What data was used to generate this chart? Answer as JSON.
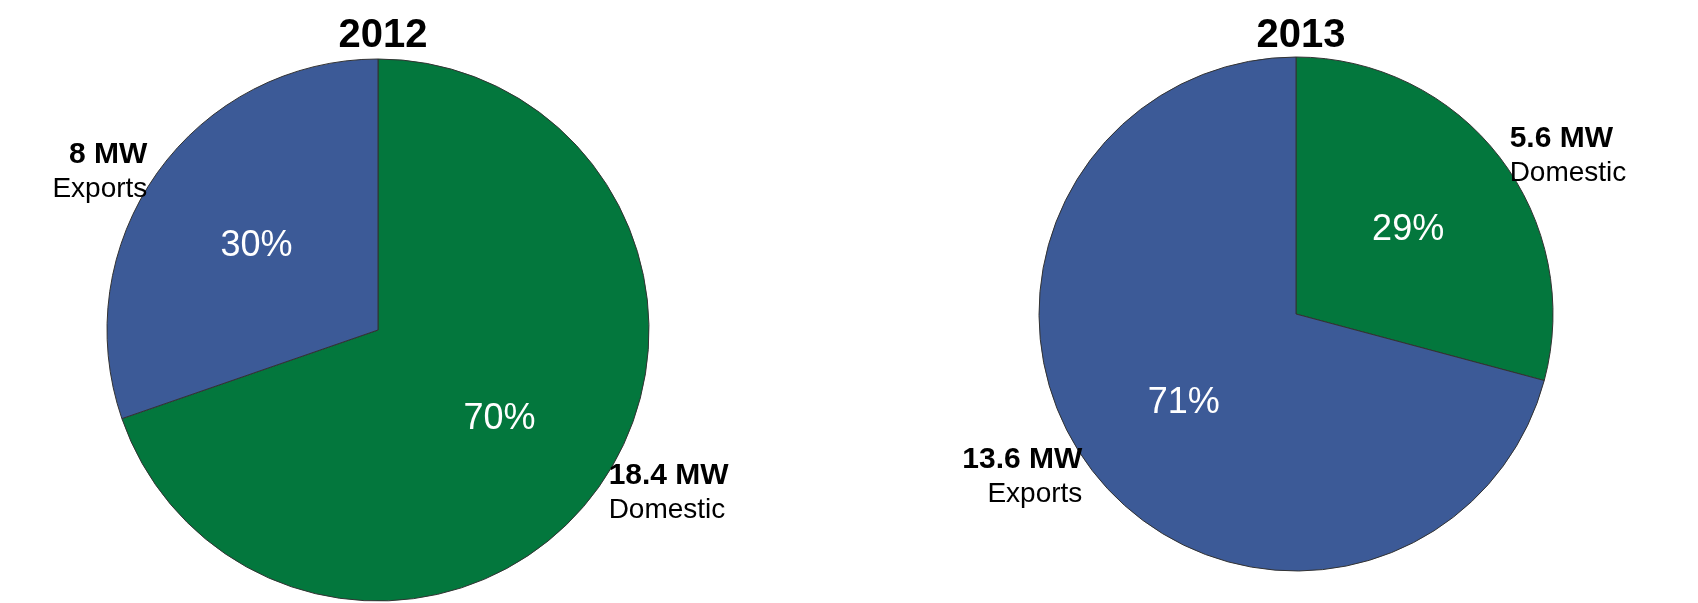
{
  "chart_data": [
    {
      "type": "pie",
      "title": "2012",
      "categories": [
        "Domestic",
        "Exports"
      ],
      "values": [
        18.4,
        8
      ],
      "colors": [
        "#03773d",
        "#3c5a97"
      ],
      "value_labels": [
        "18.4 MW",
        "8 MW"
      ],
      "annotations": [
        "70%",
        "30%"
      ]
    },
    {
      "type": "pie",
      "title": "2013",
      "categories": [
        "Domestic",
        "Exports"
      ],
      "values": [
        5.6,
        13.6
      ],
      "colors": [
        "#03773d",
        "#3c5a97"
      ],
      "value_labels": [
        "5.6 MW",
        "13.6 MW"
      ],
      "annotations": [
        "29%",
        "71%"
      ]
    }
  ]
}
